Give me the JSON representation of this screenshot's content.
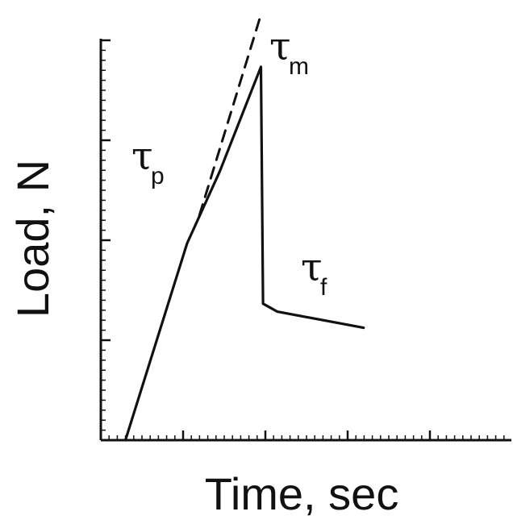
{
  "chart_data": {
    "type": "line",
    "title": "",
    "xlabel": "Time, sec",
    "ylabel": "Load, N",
    "xlim": [
      0,
      10
    ],
    "ylim": [
      0,
      10
    ],
    "grid": false,
    "tick_labels": false,
    "series": [
      {
        "style": "solid",
        "points": [
          [
            0.6,
            0
          ],
          [
            2.1,
            4.9
          ],
          [
            2.9,
            6.7
          ],
          [
            3.9,
            9.3
          ],
          [
            3.95,
            3.4
          ],
          [
            4.3,
            3.2
          ],
          [
            6.4,
            2.8
          ]
        ]
      },
      {
        "style": "dashed",
        "points": [
          [
            2.4,
            5.6
          ],
          [
            3.9,
            10.6
          ]
        ]
      }
    ],
    "annotations": [
      {
        "symbol": "τ",
        "subscript": "p",
        "x": 0.86,
        "y": 0.95
      },
      {
        "symbol": "τ",
        "subscript": "m",
        "x": 0.56,
        "y": 0.95
      },
      {
        "symbol": "τ",
        "subscript": "f",
        "x": 0.96,
        "y": 0.14
      }
    ]
  }
}
